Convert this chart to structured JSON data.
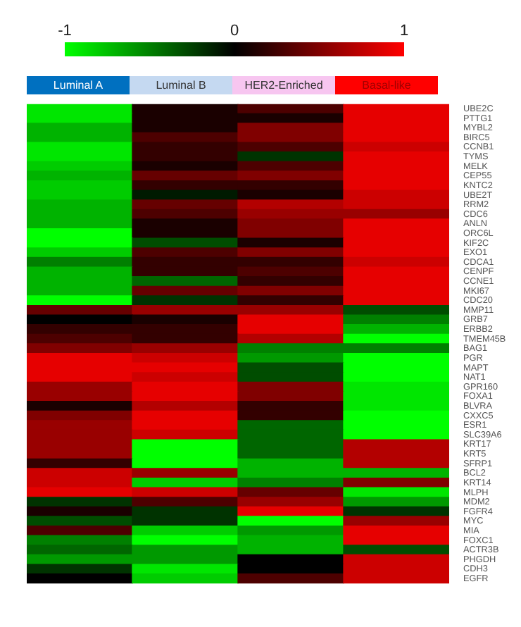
{
  "chart_data": {
    "type": "heatmap",
    "categories": [
      "Luminal A",
      "Luminal B",
      "HER2-Enriched",
      "Basal-like"
    ],
    "y_categories": [
      "UBE2C",
      "PTTG1",
      "MYBL2",
      "BIRC5",
      "CCNB1",
      "TYMS",
      "MELK",
      "CEP55",
      "KNTC2",
      "UBE2T",
      "RRM2",
      "CDC6",
      "ANLN",
      "ORC6L",
      "KIF2C",
      "EXO1",
      "CDCA1",
      "CENPF",
      "CCNE1",
      "MKI67",
      "CDC20",
      "MMP11",
      "GRB7",
      "ERBB2",
      "TMEM45B",
      "BAG1",
      "PGR",
      "MAPT",
      "NAT1",
      "GPR160",
      "FOXA1",
      "BLVRA",
      "CXXC5",
      "ESR1",
      "SLC39A6",
      "KRT17",
      "KRT5",
      "SFRP1",
      "BCL2",
      "KRT14",
      "MLPH",
      "MDM2",
      "FGFR4",
      "MYC",
      "MIA",
      "FOXC1",
      "ACTR3B",
      "PHGDH",
      "CDH3",
      "EGFR"
    ],
    "cells": [
      [
        -0.9,
        0.1,
        0.3,
        0.9
      ],
      [
        -0.9,
        0.1,
        0.1,
        0.9
      ],
      [
        -0.7,
        0.1,
        0.5,
        0.9
      ],
      [
        -0.7,
        0.3,
        0.5,
        0.9
      ],
      [
        -0.9,
        0.2,
        0.3,
        0.8
      ],
      [
        -0.9,
        0.2,
        -0.2,
        0.9
      ],
      [
        -0.8,
        0.1,
        0.3,
        0.9
      ],
      [
        -0.7,
        0.4,
        0.5,
        0.9
      ],
      [
        -0.8,
        0.2,
        0.2,
        0.9
      ],
      [
        -0.8,
        -0.1,
        0.1,
        0.8
      ],
      [
        -0.7,
        0.4,
        0.7,
        0.8
      ],
      [
        -0.7,
        0.3,
        0.6,
        0.6
      ],
      [
        -0.7,
        0.1,
        0.5,
        0.9
      ],
      [
        -1.0,
        0.1,
        0.5,
        0.9
      ],
      [
        -1.0,
        -0.3,
        0.1,
        0.9
      ],
      [
        -0.8,
        0.3,
        0.5,
        0.9
      ],
      [
        -0.5,
        0.2,
        0.2,
        0.8
      ],
      [
        -0.7,
        0.2,
        0.3,
        0.9
      ],
      [
        -0.7,
        -0.4,
        0.2,
        0.9
      ],
      [
        -0.7,
        0.4,
        0.5,
        0.9
      ],
      [
        -1.0,
        -0.2,
        0.2,
        0.9
      ],
      [
        0.4,
        0.6,
        0.6,
        -0.3
      ],
      [
        0.0,
        0.1,
        0.9,
        -0.5
      ],
      [
        0.2,
        0.2,
        0.9,
        -0.7
      ],
      [
        0.3,
        0.2,
        0.7,
        -1.0
      ],
      [
        0.5,
        0.6,
        -0.5,
        -0.5
      ],
      [
        0.9,
        0.8,
        -0.6,
        -1.0
      ],
      [
        0.9,
        0.9,
        -0.3,
        -1.0
      ],
      [
        0.9,
        0.8,
        -0.3,
        -1.0
      ],
      [
        0.6,
        0.9,
        0.5,
        -0.9
      ],
      [
        0.6,
        0.9,
        0.5,
        -0.9
      ],
      [
        0.1,
        0.7,
        0.2,
        -0.9
      ],
      [
        0.5,
        0.9,
        0.2,
        -1.0
      ],
      [
        0.6,
        0.9,
        -0.4,
        -1.0
      ],
      [
        0.6,
        0.8,
        -0.4,
        -1.0
      ],
      [
        0.6,
        -1.0,
        -0.4,
        0.7
      ],
      [
        0.6,
        -1.0,
        -0.4,
        0.7
      ],
      [
        0.2,
        -1.0,
        -0.7,
        0.7
      ],
      [
        0.8,
        0.6,
        -0.7,
        -0.7
      ],
      [
        0.8,
        -0.8,
        -0.5,
        0.5
      ],
      [
        0.9,
        0.8,
        0.4,
        -0.9
      ],
      [
        -0.2,
        0.3,
        0.6,
        -0.6
      ],
      [
        0.1,
        -0.2,
        0.9,
        -0.2
      ],
      [
        -0.3,
        -0.2,
        -1.0,
        0.6
      ],
      [
        0.3,
        -0.8,
        -0.6,
        0.9
      ],
      [
        -0.5,
        -1.0,
        -0.7,
        0.9
      ],
      [
        -0.4,
        -0.6,
        -0.7,
        -0.3
      ],
      [
        -0.6,
        -0.6,
        0.0,
        0.8
      ],
      [
        -0.2,
        -0.9,
        0.0,
        0.8
      ],
      [
        0.0,
        -0.8,
        0.3,
        0.8
      ]
    ],
    "clim": [
      -1,
      1
    ],
    "cticks": [
      -1,
      0,
      1
    ]
  }
}
